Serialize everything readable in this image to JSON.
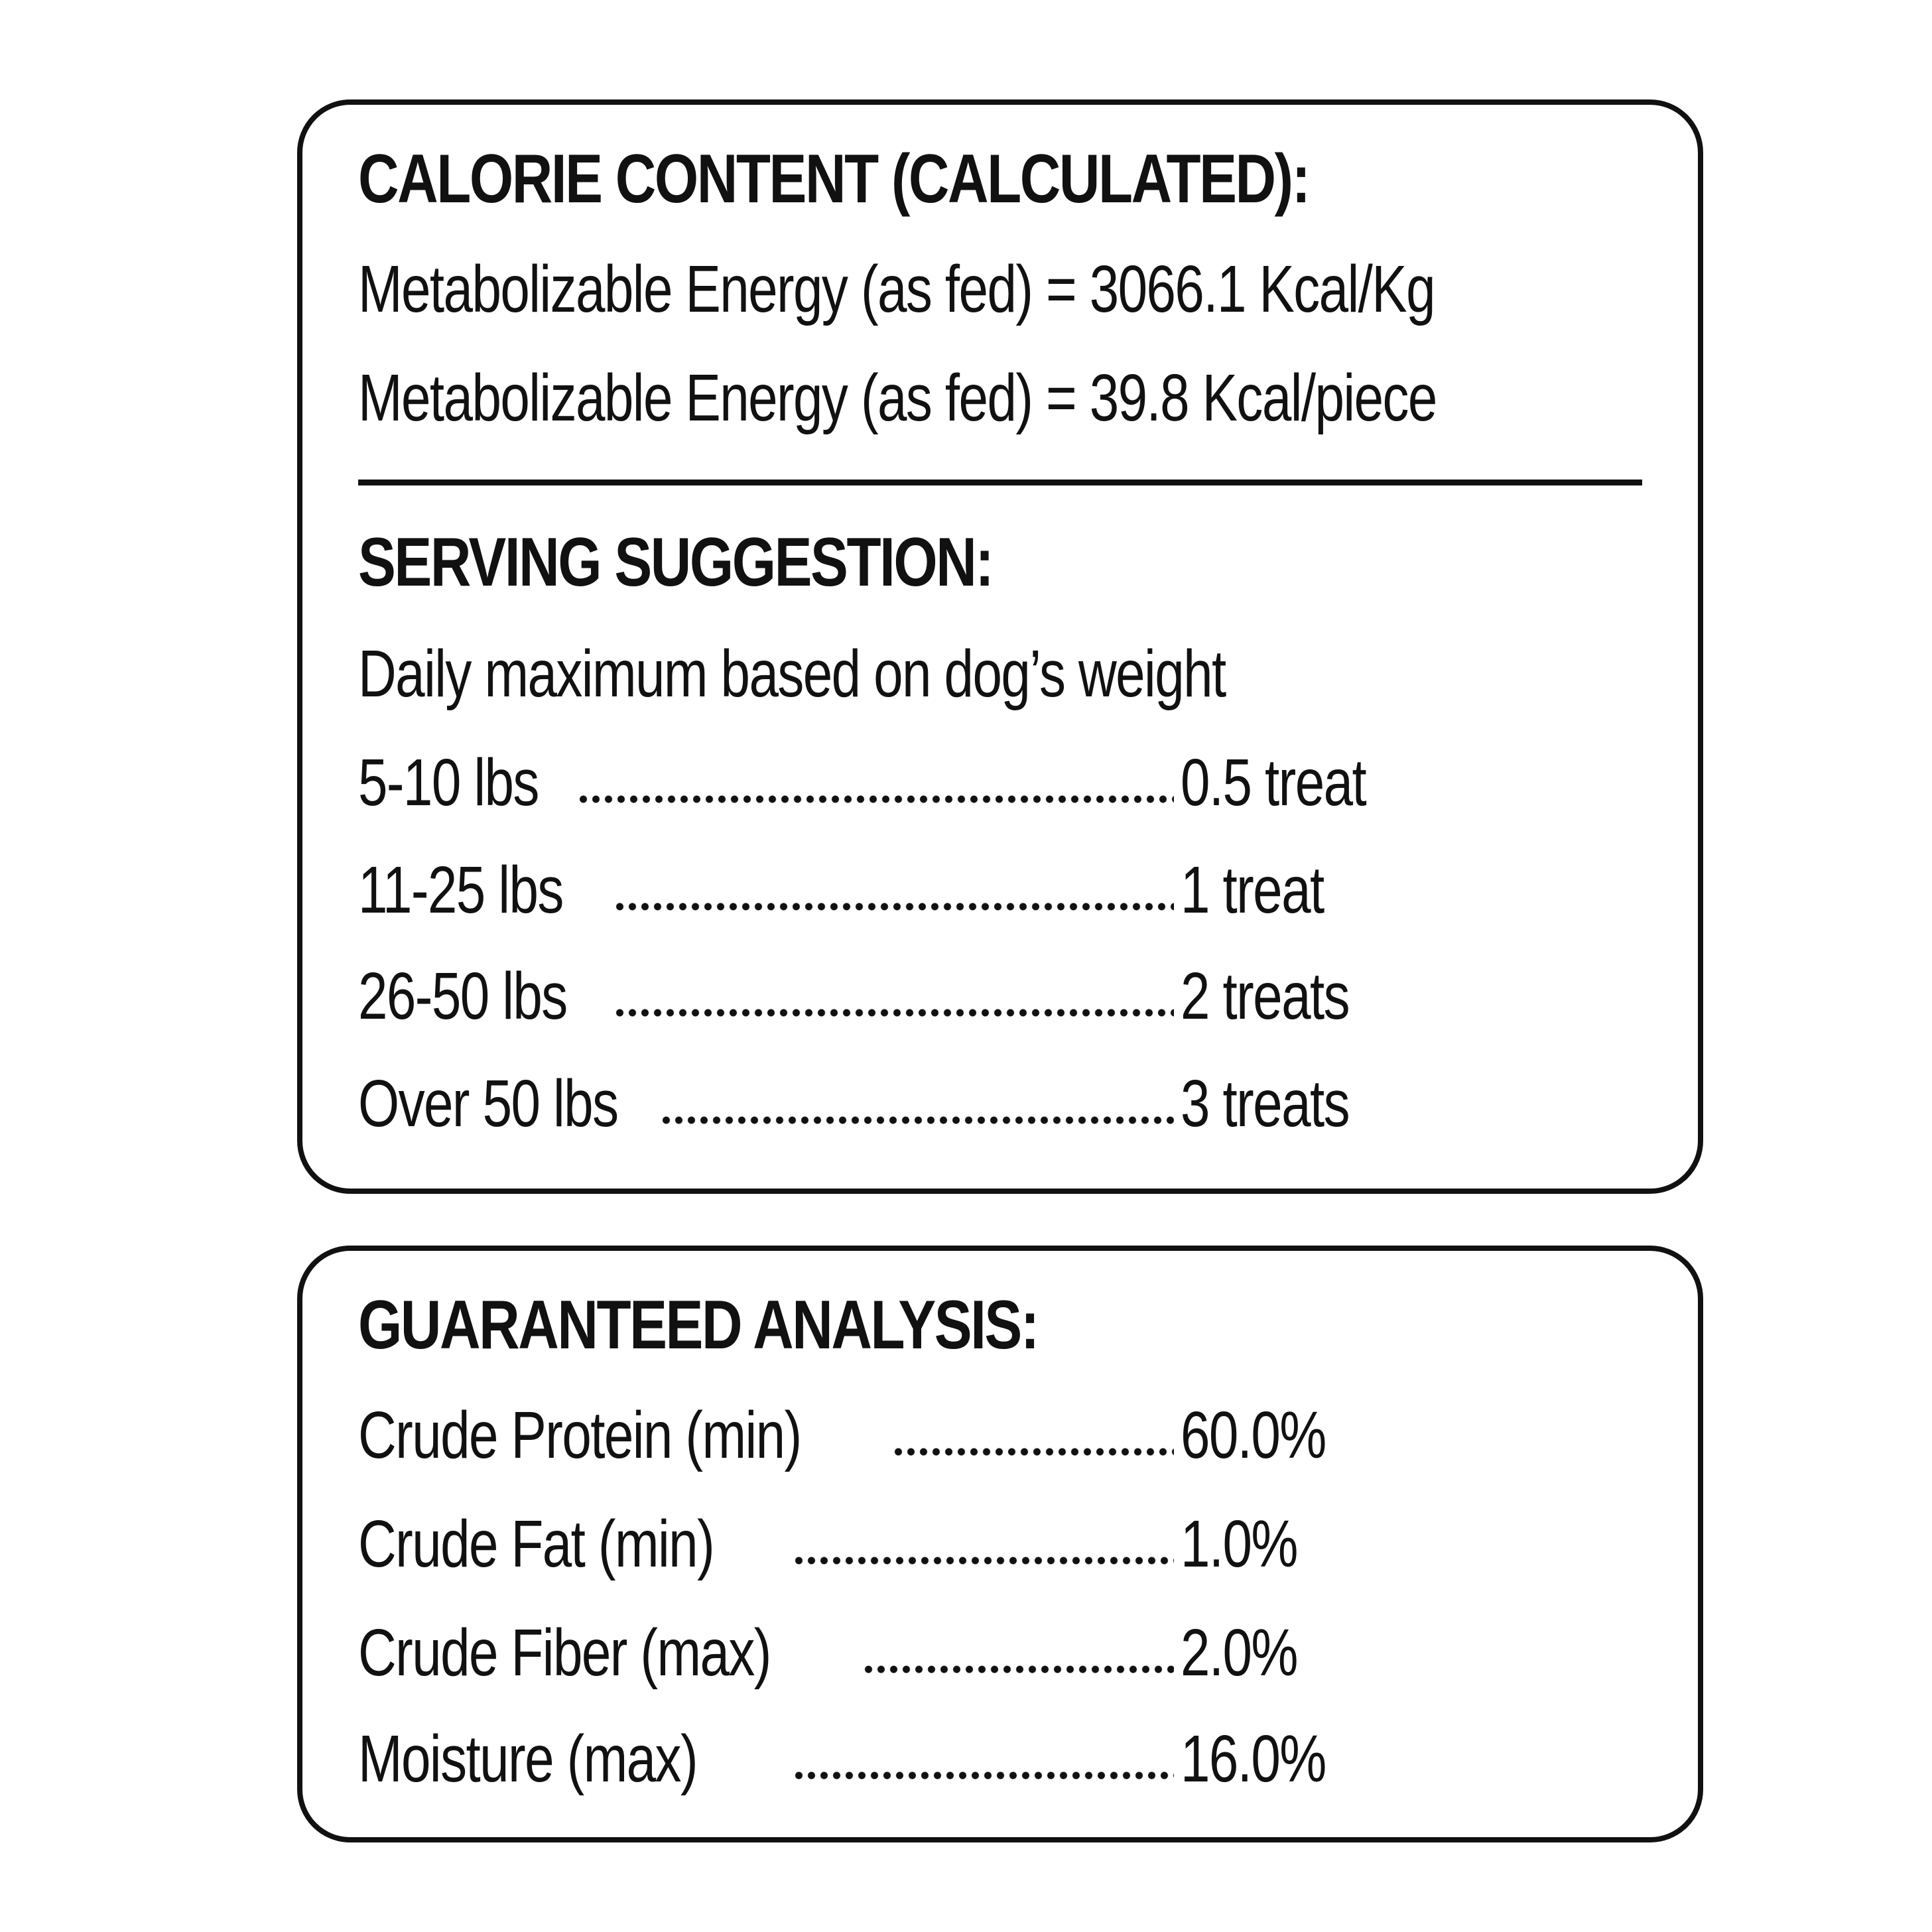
{
  "calorie_content": {
    "heading": "CALORIE CONTENT (CALCULATED):",
    "lines": [
      "Metabolizable Energy (as fed) = 3066.1 Kcal/Kg",
      "Metabolizable Energy (as fed) = 39.8 Kcal/piece"
    ]
  },
  "serving_suggestion": {
    "heading": "SERVING SUGGESTION:",
    "intro": "Daily maximum based on dog’s weight",
    "rows": [
      {
        "label": "5-10 lbs",
        "value": "0.5 treat"
      },
      {
        "label": "11-25 lbs",
        "value": "1 treat"
      },
      {
        "label": "26-50 lbs",
        "value": "2 treats"
      },
      {
        "label": "Over 50 lbs",
        "value": "3 treats"
      }
    ]
  },
  "guaranteed_analysis": {
    "heading": "GUARANTEED ANALYSIS:",
    "rows": [
      {
        "label": "Crude Protein (min)",
        "value": "60.0%"
      },
      {
        "label": "Crude Fat (min)",
        "value": "1.0%"
      },
      {
        "label": "Crude Fiber (max)",
        "value": "2.0%"
      },
      {
        "label": "Moisture (max)",
        "value": "16.0%"
      }
    ]
  }
}
